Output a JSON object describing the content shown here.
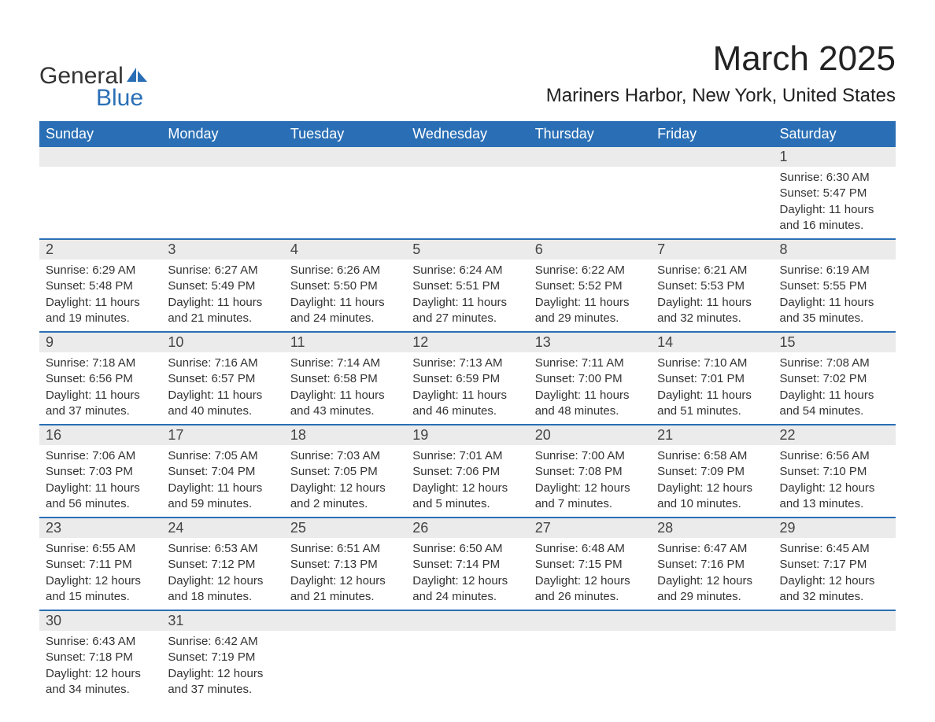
{
  "logo": {
    "text_general": "General",
    "text_blue": "Blue",
    "accent_color": "#2a6fb5"
  },
  "title": "March 2025",
  "location": "Mariners Harbor, New York, United States",
  "colors": {
    "header_bg": "#2a6fb5",
    "header_text": "#ffffff",
    "daynum_bg": "#ebebeb",
    "text": "#333333",
    "row_border": "#2a6fb5",
    "page_bg": "#ffffff"
  },
  "typography": {
    "title_fontsize": 44,
    "location_fontsize": 24,
    "header_fontsize": 18,
    "daynum_fontsize": 18,
    "body_fontsize": 15
  },
  "weekdays": [
    "Sunday",
    "Monday",
    "Tuesday",
    "Wednesday",
    "Thursday",
    "Friday",
    "Saturday"
  ],
  "weeks": [
    [
      null,
      null,
      null,
      null,
      null,
      null,
      {
        "num": "1",
        "sunrise": "Sunrise: 6:30 AM",
        "sunset": "Sunset: 5:47 PM",
        "daylight": "Daylight: 11 hours and 16 minutes."
      }
    ],
    [
      {
        "num": "2",
        "sunrise": "Sunrise: 6:29 AM",
        "sunset": "Sunset: 5:48 PM",
        "daylight": "Daylight: 11 hours and 19 minutes."
      },
      {
        "num": "3",
        "sunrise": "Sunrise: 6:27 AM",
        "sunset": "Sunset: 5:49 PM",
        "daylight": "Daylight: 11 hours and 21 minutes."
      },
      {
        "num": "4",
        "sunrise": "Sunrise: 6:26 AM",
        "sunset": "Sunset: 5:50 PM",
        "daylight": "Daylight: 11 hours and 24 minutes."
      },
      {
        "num": "5",
        "sunrise": "Sunrise: 6:24 AM",
        "sunset": "Sunset: 5:51 PM",
        "daylight": "Daylight: 11 hours and 27 minutes."
      },
      {
        "num": "6",
        "sunrise": "Sunrise: 6:22 AM",
        "sunset": "Sunset: 5:52 PM",
        "daylight": "Daylight: 11 hours and 29 minutes."
      },
      {
        "num": "7",
        "sunrise": "Sunrise: 6:21 AM",
        "sunset": "Sunset: 5:53 PM",
        "daylight": "Daylight: 11 hours and 32 minutes."
      },
      {
        "num": "8",
        "sunrise": "Sunrise: 6:19 AM",
        "sunset": "Sunset: 5:55 PM",
        "daylight": "Daylight: 11 hours and 35 minutes."
      }
    ],
    [
      {
        "num": "9",
        "sunrise": "Sunrise: 7:18 AM",
        "sunset": "Sunset: 6:56 PM",
        "daylight": "Daylight: 11 hours and 37 minutes."
      },
      {
        "num": "10",
        "sunrise": "Sunrise: 7:16 AM",
        "sunset": "Sunset: 6:57 PM",
        "daylight": "Daylight: 11 hours and 40 minutes."
      },
      {
        "num": "11",
        "sunrise": "Sunrise: 7:14 AM",
        "sunset": "Sunset: 6:58 PM",
        "daylight": "Daylight: 11 hours and 43 minutes."
      },
      {
        "num": "12",
        "sunrise": "Sunrise: 7:13 AM",
        "sunset": "Sunset: 6:59 PM",
        "daylight": "Daylight: 11 hours and 46 minutes."
      },
      {
        "num": "13",
        "sunrise": "Sunrise: 7:11 AM",
        "sunset": "Sunset: 7:00 PM",
        "daylight": "Daylight: 11 hours and 48 minutes."
      },
      {
        "num": "14",
        "sunrise": "Sunrise: 7:10 AM",
        "sunset": "Sunset: 7:01 PM",
        "daylight": "Daylight: 11 hours and 51 minutes."
      },
      {
        "num": "15",
        "sunrise": "Sunrise: 7:08 AM",
        "sunset": "Sunset: 7:02 PM",
        "daylight": "Daylight: 11 hours and 54 minutes."
      }
    ],
    [
      {
        "num": "16",
        "sunrise": "Sunrise: 7:06 AM",
        "sunset": "Sunset: 7:03 PM",
        "daylight": "Daylight: 11 hours and 56 minutes."
      },
      {
        "num": "17",
        "sunrise": "Sunrise: 7:05 AM",
        "sunset": "Sunset: 7:04 PM",
        "daylight": "Daylight: 11 hours and 59 minutes."
      },
      {
        "num": "18",
        "sunrise": "Sunrise: 7:03 AM",
        "sunset": "Sunset: 7:05 PM",
        "daylight": "Daylight: 12 hours and 2 minutes."
      },
      {
        "num": "19",
        "sunrise": "Sunrise: 7:01 AM",
        "sunset": "Sunset: 7:06 PM",
        "daylight": "Daylight: 12 hours and 5 minutes."
      },
      {
        "num": "20",
        "sunrise": "Sunrise: 7:00 AM",
        "sunset": "Sunset: 7:08 PM",
        "daylight": "Daylight: 12 hours and 7 minutes."
      },
      {
        "num": "21",
        "sunrise": "Sunrise: 6:58 AM",
        "sunset": "Sunset: 7:09 PM",
        "daylight": "Daylight: 12 hours and 10 minutes."
      },
      {
        "num": "22",
        "sunrise": "Sunrise: 6:56 AM",
        "sunset": "Sunset: 7:10 PM",
        "daylight": "Daylight: 12 hours and 13 minutes."
      }
    ],
    [
      {
        "num": "23",
        "sunrise": "Sunrise: 6:55 AM",
        "sunset": "Sunset: 7:11 PM",
        "daylight": "Daylight: 12 hours and 15 minutes."
      },
      {
        "num": "24",
        "sunrise": "Sunrise: 6:53 AM",
        "sunset": "Sunset: 7:12 PM",
        "daylight": "Daylight: 12 hours and 18 minutes."
      },
      {
        "num": "25",
        "sunrise": "Sunrise: 6:51 AM",
        "sunset": "Sunset: 7:13 PM",
        "daylight": "Daylight: 12 hours and 21 minutes."
      },
      {
        "num": "26",
        "sunrise": "Sunrise: 6:50 AM",
        "sunset": "Sunset: 7:14 PM",
        "daylight": "Daylight: 12 hours and 24 minutes."
      },
      {
        "num": "27",
        "sunrise": "Sunrise: 6:48 AM",
        "sunset": "Sunset: 7:15 PM",
        "daylight": "Daylight: 12 hours and 26 minutes."
      },
      {
        "num": "28",
        "sunrise": "Sunrise: 6:47 AM",
        "sunset": "Sunset: 7:16 PM",
        "daylight": "Daylight: 12 hours and 29 minutes."
      },
      {
        "num": "29",
        "sunrise": "Sunrise: 6:45 AM",
        "sunset": "Sunset: 7:17 PM",
        "daylight": "Daylight: 12 hours and 32 minutes."
      }
    ],
    [
      {
        "num": "30",
        "sunrise": "Sunrise: 6:43 AM",
        "sunset": "Sunset: 7:18 PM",
        "daylight": "Daylight: 12 hours and 34 minutes."
      },
      {
        "num": "31",
        "sunrise": "Sunrise: 6:42 AM",
        "sunset": "Sunset: 7:19 PM",
        "daylight": "Daylight: 12 hours and 37 minutes."
      },
      null,
      null,
      null,
      null,
      null
    ]
  ]
}
